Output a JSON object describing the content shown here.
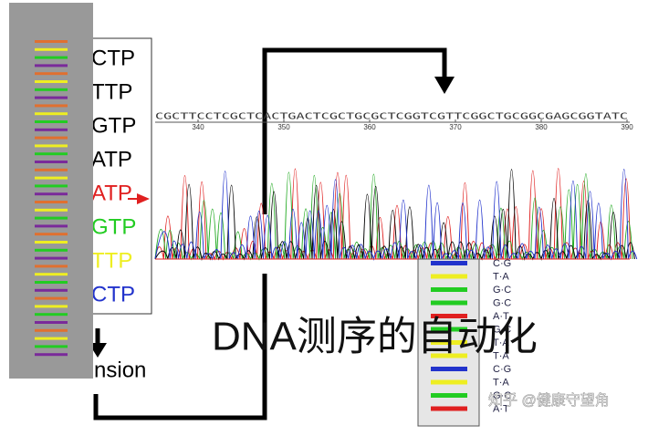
{
  "nucleotides": [
    "CTP",
    "TTP",
    "GTP",
    "ATP",
    "ATP",
    "GTP",
    "TTP",
    "CTP"
  ],
  "nucleotide_colors": [
    "#000000",
    "#000000",
    "#000000",
    "#000000",
    "#e02020",
    "#22cc22",
    "#eeee22",
    "#2233cc"
  ],
  "sequence": "CGCTTCCTCGCTCACTGACTCGCTGCGCTCGGTCGTTCGGCTGCGGCGAGCGGTATC",
  "positions": [
    340,
    350,
    360,
    370,
    380,
    390
  ],
  "extension_label": "Extension",
  "base_pairs": [
    "C·G",
    "T·A",
    "G·C",
    "G·C",
    "A·T",
    "G·C",
    "T·A",
    "T·A",
    "C·G",
    "T·A",
    "G·C",
    "A·T"
  ],
  "title": "DNA测序的自动化",
  "watermark": "知乎 @健康守望角"
}
